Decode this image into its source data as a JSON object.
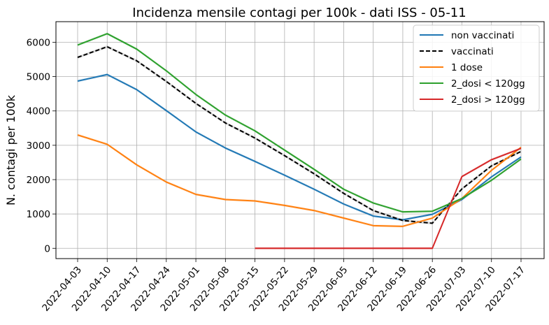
{
  "chart_data": {
    "type": "line",
    "title": "Incidenza mensile contagi per 100k - dati ISS - 05-11",
    "xlabel": "",
    "ylabel": "N. contagi per 100k",
    "x": [
      "2022-04-03",
      "2022-04-10",
      "2022-04-17",
      "2022-04-24",
      "2022-05-01",
      "2022-05-08",
      "2022-05-15",
      "2022-05-22",
      "2022-05-29",
      "2022-06-05",
      "2022-06-12",
      "2022-06-19",
      "2022-06-26",
      "2022-07-03",
      "2022-07-10",
      "2022-07-17"
    ],
    "ylim": [
      -300,
      6600
    ],
    "yticks": [
      0,
      1000,
      2000,
      3000,
      4000,
      5000,
      6000
    ],
    "grid": true,
    "legend_position": "top-right",
    "series": [
      {
        "name": "non vaccinati",
        "color": "#1f77b4",
        "style": "solid",
        "values": [
          4870,
          5060,
          4620,
          4010,
          3390,
          2920,
          2530,
          2130,
          1720,
          1290,
          940,
          830,
          990,
          1420,
          2080,
          2660
        ]
      },
      {
        "name": "vaccinati",
        "color": "#000000",
        "style": "dashed",
        "values": [
          5560,
          5870,
          5460,
          4860,
          4220,
          3650,
          3210,
          2700,
          2170,
          1600,
          1100,
          810,
          730,
          1730,
          2400,
          2820
        ]
      },
      {
        "name": "1 dose",
        "color": "#ff7f0e",
        "style": "solid",
        "values": [
          3300,
          3030,
          2430,
          1930,
          1570,
          1420,
          1380,
          1250,
          1100,
          880,
          660,
          640,
          880,
          1450,
          2270,
          2940
        ]
      },
      {
        "name": "2_dosi < 120gg",
        "color": "#2ca02c",
        "style": "solid",
        "values": [
          5920,
          6250,
          5800,
          5170,
          4480,
          3880,
          3420,
          2860,
          2300,
          1720,
          1320,
          1060,
          1080,
          1450,
          1980,
          2600
        ]
      },
      {
        "name": "2_dosi > 120gg",
        "color": "#d62728",
        "style": "solid",
        "values": [
          null,
          null,
          null,
          null,
          null,
          null,
          0,
          0,
          0,
          0,
          0,
          0,
          0,
          2090,
          2580,
          2910
        ]
      }
    ]
  }
}
